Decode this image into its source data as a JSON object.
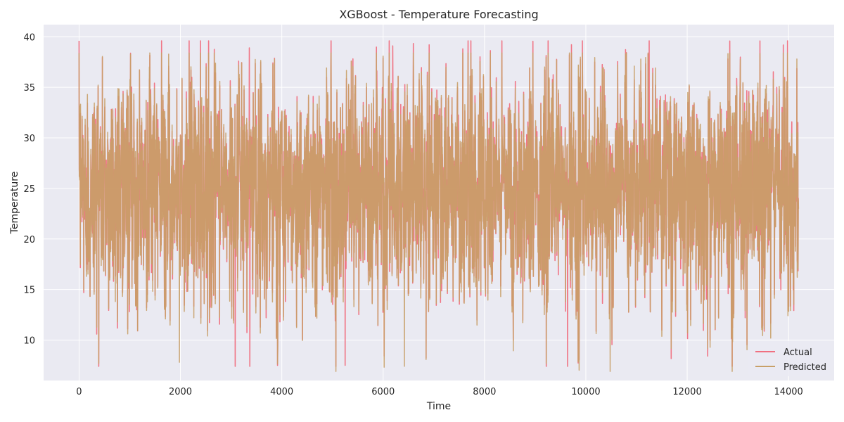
{
  "chart_data": {
    "type": "line",
    "title": "XGBoost - Temperature Forecasting",
    "xlabel": "Time",
    "ylabel": "Temperature",
    "xlim": [
      -700,
      14900
    ],
    "ylim": [
      6,
      41.2
    ],
    "xticks": [
      0,
      2000,
      4000,
      6000,
      8000,
      10000,
      12000,
      14000
    ],
    "yticks": [
      10,
      15,
      20,
      25,
      30,
      35,
      40
    ],
    "grid": true,
    "legend_position": "lower-right",
    "n_points": 14200,
    "series": [
      {
        "name": "Actual",
        "color": "#f07080",
        "approx_mean": 25,
        "approx_min": 7.4,
        "approx_max": 39.6,
        "sample_extremes": [
          {
            "x": 11250,
            "y": 39.6
          },
          {
            "x": 6190,
            "y": 39.1
          },
          {
            "x": 3360,
            "y": 38.9
          },
          {
            "x": 3080,
            "y": 7.4
          },
          {
            "x": 3370,
            "y": 7.4
          },
          {
            "x": 5250,
            "y": 7.5
          },
          {
            "x": 9640,
            "y": 7.4
          }
        ]
      },
      {
        "name": "Predicted",
        "color": "#c8a068",
        "approx_mean": 25,
        "approx_min": 6.9,
        "approx_max": 38.4,
        "sample_extremes": [
          {
            "x": 10480,
            "y": 6.9
          },
          {
            "x": 1980,
            "y": 7.8
          },
          {
            "x": 6420,
            "y": 7.4
          }
        ]
      }
    ]
  }
}
